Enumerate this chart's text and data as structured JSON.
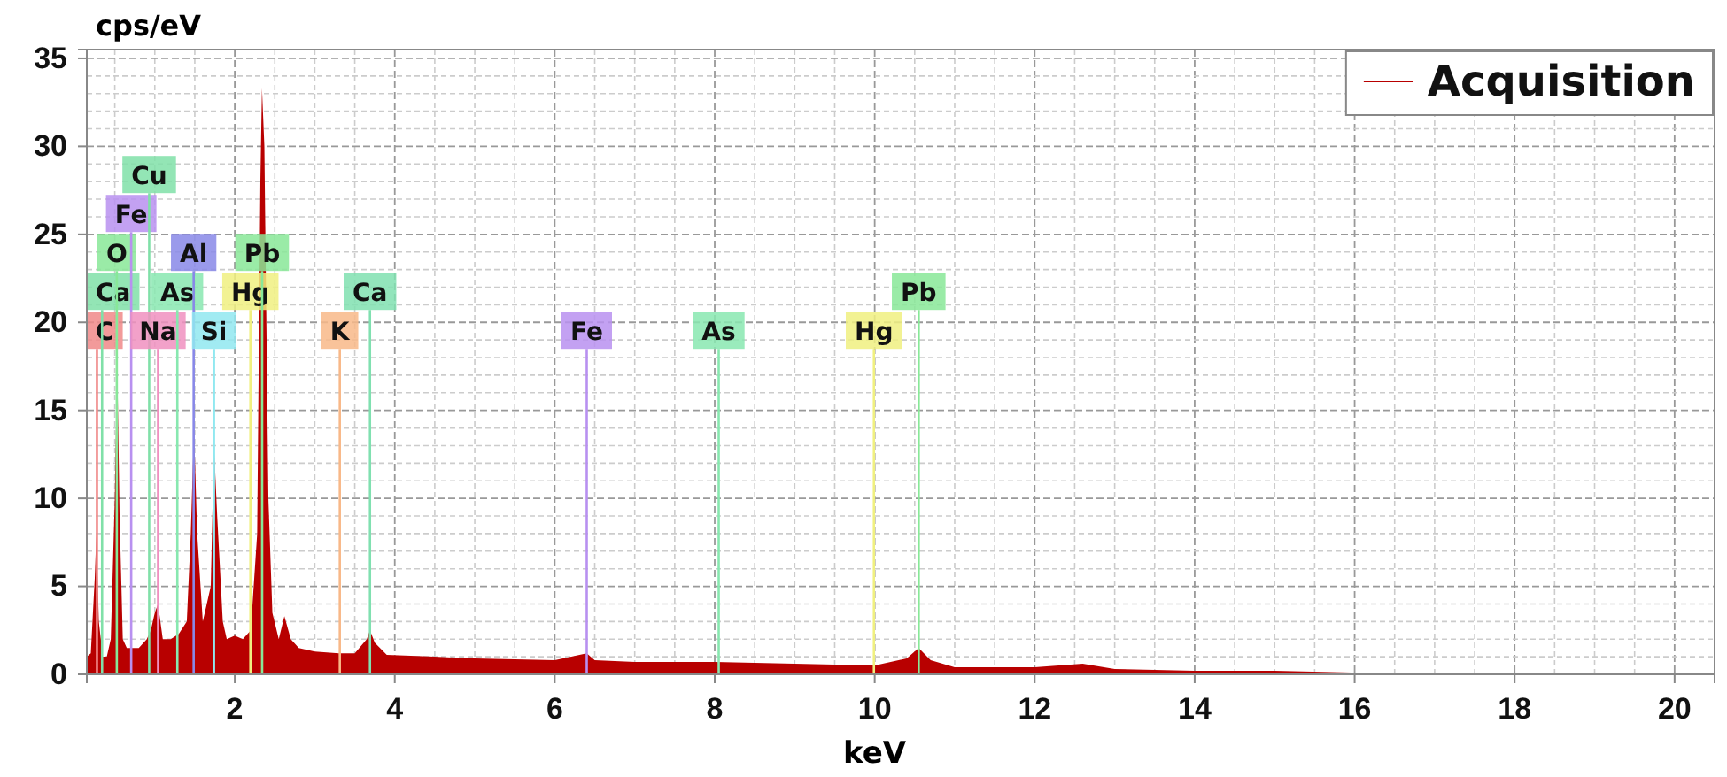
{
  "chart_data": {
    "type": "area",
    "xlabel": "keV",
    "ylabel": "cps/eV",
    "xlim": [
      0.15,
      20.5
    ],
    "ylim": [
      0,
      35.5
    ],
    "xticks": [
      2,
      4,
      6,
      8,
      10,
      12,
      14,
      16,
      18,
      20
    ],
    "yticks": [
      0,
      5,
      10,
      15,
      20,
      25,
      30,
      35
    ],
    "grid": true,
    "legend": "top right",
    "series": [
      {
        "name": "Acquisition",
        "color": "#b80000",
        "x": [
          0.15,
          0.2,
          0.25,
          0.27,
          0.3,
          0.35,
          0.4,
          0.45,
          0.5,
          0.53,
          0.56,
          0.6,
          0.65,
          0.7,
          0.8,
          0.9,
          0.95,
          1.0,
          1.04,
          1.1,
          1.2,
          1.3,
          1.4,
          1.45,
          1.49,
          1.53,
          1.6,
          1.7,
          1.74,
          1.78,
          1.85,
          1.9,
          2.0,
          2.1,
          2.2,
          2.28,
          2.32,
          2.34,
          2.37,
          2.42,
          2.47,
          2.55,
          2.62,
          2.7,
          2.8,
          3.0,
          3.3,
          3.5,
          3.65,
          3.69,
          3.75,
          3.9,
          4.5,
          5,
          6,
          6.4,
          6.5,
          7,
          8,
          9,
          10,
          10.4,
          10.55,
          10.7,
          11,
          12,
          12.6,
          13,
          14,
          15,
          16,
          17,
          18,
          19,
          20,
          20.5
        ],
        "values": [
          1,
          1.2,
          5.5,
          8,
          3,
          1,
          1,
          2,
          10,
          18,
          9,
          2,
          1.5,
          1.5,
          1.5,
          2,
          2.5,
          3.5,
          4,
          2,
          2,
          2.3,
          3,
          8,
          14,
          8,
          3,
          5,
          13,
          9,
          3,
          2,
          2.2,
          2,
          2.5,
          8,
          28,
          33.3,
          30,
          10,
          3.5,
          2,
          3.3,
          2,
          1.5,
          1.3,
          1.2,
          1.2,
          2,
          2.5,
          1.8,
          1.1,
          1,
          0.9,
          0.8,
          1.2,
          0.8,
          0.7,
          0.7,
          0.6,
          0.5,
          0.9,
          1.5,
          0.8,
          0.4,
          0.4,
          0.6,
          0.3,
          0.2,
          0.2,
          0.1,
          0.1,
          0.1,
          0.1,
          0.1,
          0.1
        ]
      }
    ],
    "ref_lines": [
      {
        "axis": "x",
        "value": 0.277,
        "label": "C",
        "color": "#f08888"
      },
      {
        "axis": "x",
        "value": 0.341,
        "label": "Ca",
        "color": "#80e0a8"
      },
      {
        "axis": "x",
        "value": 0.525,
        "label": "O",
        "color": "#88e898"
      },
      {
        "axis": "x",
        "value": 0.705,
        "label": "Fe",
        "color": "#b890f0"
      },
      {
        "axis": "x",
        "value": 0.93,
        "label": "Cu",
        "color": "#80e0a8"
      },
      {
        "axis": "x",
        "value": 1.041,
        "label": "Na",
        "color": "#f090c0"
      },
      {
        "axis": "x",
        "value": 1.282,
        "label": "As",
        "color": "#88e8b0"
      },
      {
        "axis": "x",
        "value": 1.486,
        "label": "Al",
        "color": "#8888e8"
      },
      {
        "axis": "x",
        "value": 1.74,
        "label": "Si",
        "color": "#90e8f0"
      },
      {
        "axis": "x",
        "value": 2.195,
        "label": "Hg",
        "color": "#f0f080"
      },
      {
        "axis": "x",
        "value": 2.342,
        "label": "Pb",
        "color": "#88e898"
      },
      {
        "axis": "x",
        "value": 3.313,
        "label": "K",
        "color": "#f8b888"
      },
      {
        "axis": "x",
        "value": 3.69,
        "label": "Ca",
        "color": "#80e0b0"
      },
      {
        "axis": "x",
        "value": 6.4,
        "label": "Fe",
        "color": "#b890f0"
      },
      {
        "axis": "x",
        "value": 8.05,
        "label": "As",
        "color": "#88e8b0"
      },
      {
        "axis": "x",
        "value": 9.99,
        "label": "Hg",
        "color": "#f0f080"
      },
      {
        "axis": "x",
        "value": 10.55,
        "label": "Pb",
        "color": "#88e898"
      }
    ]
  }
}
